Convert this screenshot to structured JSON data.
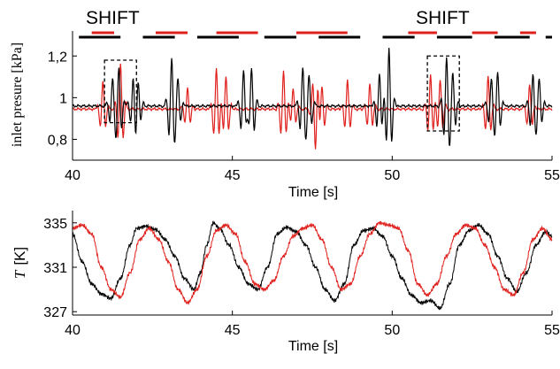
{
  "chart_data": [
    {
      "type": "line",
      "annotations": [
        "SHIFT",
        "SHIFT"
      ],
      "xlabel": "Time [s]",
      "ylabel": "inlet presure [kPa]",
      "xlim": [
        40,
        55
      ],
      "ylim": [
        0.7,
        1.32
      ],
      "xticks": [
        40,
        45,
        50,
        55
      ],
      "xtick_labels": [
        "40",
        "45",
        "50",
        "55"
      ],
      "yticks": [
        0.8,
        1.0,
        1.2
      ],
      "ytick_labels": [
        "0,8",
        "1",
        "1,2"
      ],
      "grid": false,
      "dashed_boxes": [
        {
          "x_start": 41.0,
          "x_end": 42.0,
          "y_start": 0.88,
          "y_end": 1.18
        },
        {
          "x_start": 51.1,
          "x_end": 52.1,
          "y_start": 0.84,
          "y_end": 1.2
        }
      ],
      "top_bars": {
        "black": [
          [
            40.2,
            41.5
          ],
          [
            42.2,
            43.2
          ],
          [
            43.9,
            45.2
          ],
          [
            46.0,
            47.0
          ],
          [
            47.7,
            49.0
          ],
          [
            49.7,
            50.7
          ],
          [
            51.4,
            52.5
          ],
          [
            53.2,
            54.3
          ],
          [
            54.8,
            55.0
          ]
        ],
        "red": [
          [
            40.6,
            41.3
          ],
          [
            42.6,
            43.6
          ],
          [
            44.5,
            45.8
          ],
          [
            47.0,
            48.6
          ],
          [
            50.5,
            51.4
          ],
          [
            52.5,
            53.3
          ],
          [
            54.0,
            54.5
          ]
        ]
      },
      "series": [
        {
          "color": "#000000",
          "baseline": 0.96,
          "spikes": [
            [
              41.25,
              0.12
            ],
            [
              41.45,
              0.18
            ],
            [
              41.9,
              0.12
            ],
            [
              42.05,
              0.1
            ],
            [
              43.1,
              0.22
            ],
            [
              43.3,
              0.12
            ],
            [
              45.35,
              0.18
            ],
            [
              45.6,
              0.18
            ],
            [
              47.2,
              0.18
            ],
            [
              47.4,
              0.14
            ],
            [
              49.6,
              0.16
            ],
            [
              49.9,
              0.28
            ],
            [
              51.7,
              0.22
            ],
            [
              51.9,
              0.14
            ],
            [
              53.1,
              0.12
            ],
            [
              53.3,
              0.16
            ],
            [
              54.4,
              0.14
            ],
            [
              54.6,
              0.12
            ]
          ]
        },
        {
          "color": "#e0201c",
          "baseline": 0.945,
          "spikes": [
            [
              40.95,
              0.14
            ],
            [
              41.5,
              0.22
            ],
            [
              43.6,
              0.1
            ],
            [
              44.5,
              0.2
            ],
            [
              44.8,
              0.16
            ],
            [
              46.6,
              0.18
            ],
            [
              46.9,
              0.1
            ],
            [
              47.6,
              -0.2
            ],
            [
              47.8,
              0.12
            ],
            [
              48.6,
              0.14
            ],
            [
              49.3,
              0.12
            ],
            [
              51.2,
              0.16
            ],
            [
              51.5,
              0.14
            ],
            [
              53.0,
              0.16
            ],
            [
              54.3,
              0.12
            ]
          ]
        }
      ]
    },
    {
      "type": "line",
      "xlabel": "Time [s]",
      "ylabel_symbol": "T",
      "ylabel_unit": "[K]",
      "xlim": [
        40,
        55
      ],
      "ylim": [
        326.7,
        336.1
      ],
      "xticks": [
        40,
        45,
        50,
        55
      ],
      "xtick_labels": [
        "40",
        "45",
        "50",
        "55"
      ],
      "yticks": [
        327,
        331,
        335
      ],
      "ytick_labels": [
        "327",
        "331",
        "335"
      ],
      "grid": false,
      "series": [
        {
          "color": "#000000",
          "points": [
            [
              40.0,
              334.0
            ],
            [
              40.3,
              331.5
            ],
            [
              40.6,
              329.5
            ],
            [
              40.9,
              328.6
            ],
            [
              41.2,
              328.2
            ],
            [
              41.5,
              330.0
            ],
            [
              41.8,
              333.0
            ],
            [
              42.0,
              334.5
            ],
            [
              42.3,
              334.7
            ],
            [
              42.6,
              334.4
            ],
            [
              42.9,
              333.5
            ],
            [
              43.2,
              332.0
            ],
            [
              43.5,
              330.0
            ],
            [
              43.8,
              329.0
            ],
            [
              44.0,
              330.5
            ],
            [
              44.2,
              333.0
            ],
            [
              44.4,
              335.0
            ],
            [
              44.6,
              334.5
            ],
            [
              44.9,
              333.0
            ],
            [
              45.2,
              331.0
            ],
            [
              45.5,
              329.5
            ],
            [
              45.8,
              329.0
            ],
            [
              46.1,
              331.0
            ],
            [
              46.4,
              334.0
            ],
            [
              46.7,
              334.6
            ],
            [
              47.0,
              334.2
            ],
            [
              47.3,
              333.0
            ],
            [
              47.6,
              331.0
            ],
            [
              47.9,
              329.0
            ],
            [
              48.2,
              328.0
            ],
            [
              48.5,
              329.5
            ],
            [
              48.8,
              333.0
            ],
            [
              49.1,
              334.3
            ],
            [
              49.4,
              334.5
            ],
            [
              49.7,
              333.8
            ],
            [
              50.0,
              332.0
            ],
            [
              50.3,
              330.0
            ],
            [
              50.6,
              328.5
            ],
            [
              50.9,
              327.8
            ],
            [
              51.2,
              328.0
            ],
            [
              51.5,
              327.3
            ],
            [
              51.8,
              329.5
            ],
            [
              52.1,
              333.0
            ],
            [
              52.4,
              334.3
            ],
            [
              52.7,
              334.8
            ],
            [
              53.0,
              334.0
            ],
            [
              53.3,
              332.0
            ],
            [
              53.6,
              330.0
            ],
            [
              53.9,
              328.8
            ],
            [
              54.2,
              330.5
            ],
            [
              54.5,
              333.0
            ],
            [
              54.8,
              334.2
            ],
            [
              55.0,
              333.8
            ]
          ]
        },
        {
          "color": "#e0201c",
          "points": [
            [
              40.0,
              334.5
            ],
            [
              40.3,
              334.8
            ],
            [
              40.6,
              334.0
            ],
            [
              40.9,
              331.0
            ],
            [
              41.2,
              329.0
            ],
            [
              41.5,
              328.3
            ],
            [
              41.8,
              330.5
            ],
            [
              42.1,
              333.5
            ],
            [
              42.4,
              334.5
            ],
            [
              42.7,
              333.5
            ],
            [
              43.0,
              331.5
            ],
            [
              43.3,
              329.0
            ],
            [
              43.6,
              327.8
            ],
            [
              43.9,
              329.0
            ],
            [
              44.2,
              332.0
            ],
            [
              44.5,
              334.3
            ],
            [
              44.8,
              334.8
            ],
            [
              45.1,
              334.0
            ],
            [
              45.4,
              331.5
            ],
            [
              45.7,
              329.5
            ],
            [
              46.0,
              329.0
            ],
            [
              46.3,
              329.8
            ],
            [
              46.6,
              332.0
            ],
            [
              46.9,
              333.8
            ],
            [
              47.2,
              334.5
            ],
            [
              47.5,
              334.8
            ],
            [
              47.8,
              333.5
            ],
            [
              48.1,
              331.0
            ],
            [
              48.4,
              329.0
            ],
            [
              48.7,
              329.5
            ],
            [
              49.0,
              332.0
            ],
            [
              49.3,
              334.0
            ],
            [
              49.6,
              335.0
            ],
            [
              49.9,
              334.8
            ],
            [
              50.2,
              334.5
            ],
            [
              50.5,
              332.5
            ],
            [
              50.8,
              329.5
            ],
            [
              51.1,
              328.5
            ],
            [
              51.4,
              329.5
            ],
            [
              51.7,
              332.0
            ],
            [
              52.0,
              334.0
            ],
            [
              52.3,
              334.8
            ],
            [
              52.6,
              334.5
            ],
            [
              52.9,
              333.0
            ],
            [
              53.2,
              331.0
            ],
            [
              53.5,
              329.0
            ],
            [
              53.8,
              328.5
            ],
            [
              54.1,
              330.5
            ],
            [
              54.4,
              333.5
            ],
            [
              54.7,
              334.5
            ],
            [
              55.0,
              333.5
            ]
          ]
        }
      ]
    }
  ]
}
